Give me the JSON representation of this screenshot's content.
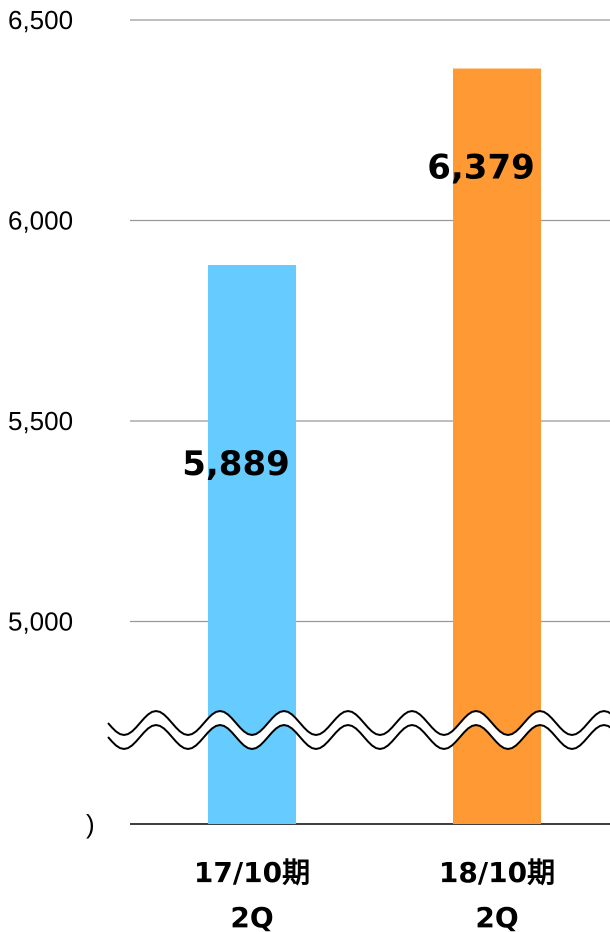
{
  "chart_data": {
    "type": "bar",
    "categories": [
      [
        "17/10期",
        "2Q"
      ],
      [
        "18/10期",
        "2Q"
      ]
    ],
    "values": [
      5889,
      6379
    ],
    "value_labels": [
      "5,889",
      "6,379"
    ],
    "colors": [
      "#66CCFF",
      "#FF9933"
    ],
    "y_ticks": [
      "6,500",
      "6,000",
      "5,500",
      "5,000"
    ],
    "y_tick_values": [
      6500,
      6000,
      5500,
      5000
    ],
    "baseline_label": ")",
    "axis_break": true,
    "grid": true,
    "title": "",
    "xlabel": "",
    "ylabel": ""
  }
}
